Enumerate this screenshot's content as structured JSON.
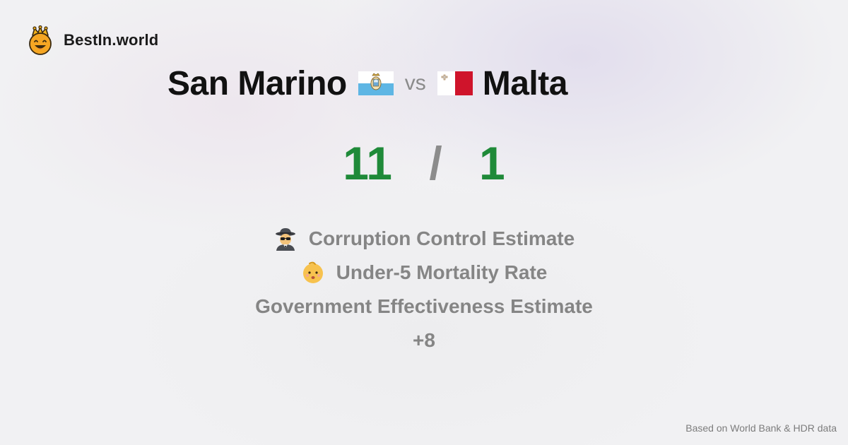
{
  "brand": {
    "name": "BestIn.world",
    "icon": "crowned-smiley-icon"
  },
  "comparison": {
    "country_a": "San Marino",
    "country_a_flag": "san-marino-flag-icon",
    "vs_label": "vs",
    "country_b": "Malta",
    "country_b_flag": "malta-flag-icon"
  },
  "score": {
    "a": "11",
    "separator": "/",
    "b": "1",
    "color": "#1f8a39"
  },
  "metrics": [
    {
      "label": "Corruption Control Estimate",
      "icon": "detective-icon"
    },
    {
      "label": "Under-5 Mortality Rate",
      "icon": "baby-icon"
    },
    {
      "label": "Government Effectiveness Estimate",
      "icon": ""
    },
    {
      "label": "+8",
      "icon": ""
    }
  ],
  "footer": {
    "source": "Based on World Bank & HDR data"
  }
}
